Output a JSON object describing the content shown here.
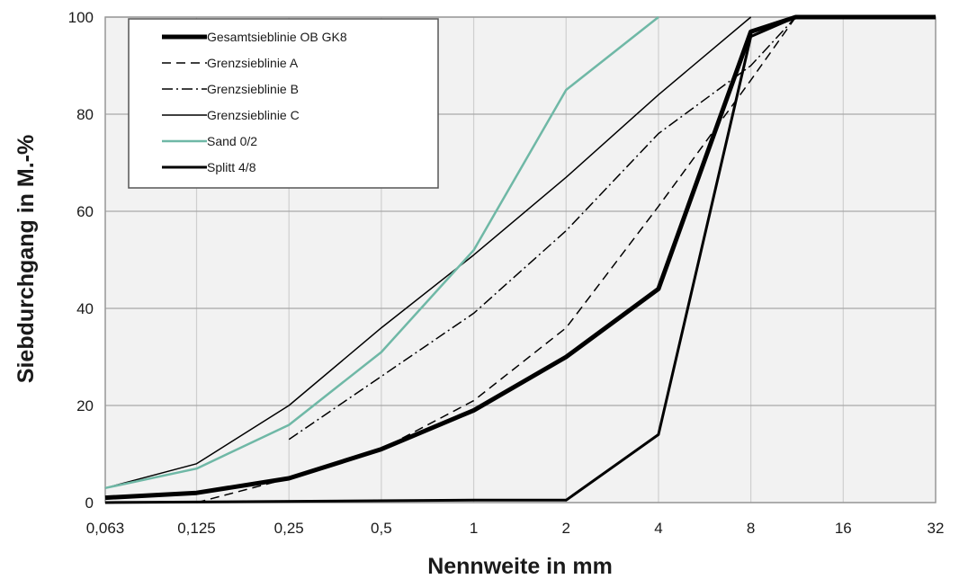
{
  "chart_data": {
    "type": "line",
    "title": "",
    "xlabel": "Nennweite in mm",
    "ylabel": "Siebdurchgang in M.-%",
    "x_scale": "log2",
    "x_ticks": [
      "0,063",
      "0,125",
      "0,25",
      "0,5",
      "1",
      "2",
      "4",
      "8",
      "16",
      "32"
    ],
    "x_tick_values": [
      0.063,
      0.125,
      0.25,
      0.5,
      1,
      2,
      4,
      8,
      16,
      32
    ],
    "ylim": [
      0,
      100
    ],
    "y_ticks": [
      "0",
      "20",
      "40",
      "60",
      "80",
      "100"
    ],
    "y_tick_values": [
      0,
      20,
      40,
      60,
      80,
      100
    ],
    "grid": true,
    "legend_position": "top-left",
    "series": [
      {
        "name": "Gesamtsieblinie OB GK8",
        "color": "#000000",
        "width": 5,
        "dash": "",
        "points": [
          [
            0.063,
            1
          ],
          [
            0.125,
            2
          ],
          [
            0.25,
            5
          ],
          [
            0.5,
            11
          ],
          [
            1,
            19
          ],
          [
            2,
            30
          ],
          [
            4,
            44
          ],
          [
            8,
            97
          ],
          [
            11.2,
            100
          ],
          [
            32,
            100
          ]
        ]
      },
      {
        "name": "Grenzsieblinie A",
        "color": "#000000",
        "width": 1.5,
        "dash": "10,6",
        "points": [
          [
            0.125,
            0
          ],
          [
            0.25,
            5
          ],
          [
            0.5,
            11
          ],
          [
            1,
            21
          ],
          [
            2,
            36
          ],
          [
            4,
            61
          ],
          [
            8,
            87
          ],
          [
            11.2,
            100
          ]
        ]
      },
      {
        "name": "Grenzsieblinie B",
        "color": "#000000",
        "width": 1.5,
        "dash": "12,4,2,4",
        "points": [
          [
            0.25,
            13
          ],
          [
            0.5,
            26
          ],
          [
            1,
            39
          ],
          [
            2,
            56
          ],
          [
            4,
            76
          ],
          [
            8,
            90
          ],
          [
            11.2,
            100
          ]
        ]
      },
      {
        "name": "Grenzsieblinie C",
        "color": "#000000",
        "width": 1.5,
        "dash": "",
        "points": [
          [
            0.063,
            3
          ],
          [
            0.125,
            8
          ],
          [
            0.25,
            20
          ],
          [
            0.5,
            36
          ],
          [
            1,
            51
          ],
          [
            2,
            67
          ],
          [
            4,
            84
          ],
          [
            8,
            100
          ]
        ]
      },
      {
        "name": "Sand 0/2",
        "color": "#6fb8a6",
        "width": 2.5,
        "dash": "",
        "points": [
          [
            0.063,
            3
          ],
          [
            0.125,
            7
          ],
          [
            0.25,
            16
          ],
          [
            0.5,
            31
          ],
          [
            1,
            52
          ],
          [
            2,
            85
          ],
          [
            4,
            100
          ]
        ]
      },
      {
        "name": "Splitt 4/8",
        "color": "#000000",
        "width": 3,
        "dash": "",
        "points": [
          [
            0.063,
            0
          ],
          [
            1,
            0.5
          ],
          [
            2,
            0.5
          ],
          [
            4,
            14
          ],
          [
            8,
            96
          ],
          [
            11.2,
            100
          ],
          [
            32,
            100
          ]
        ]
      }
    ]
  }
}
